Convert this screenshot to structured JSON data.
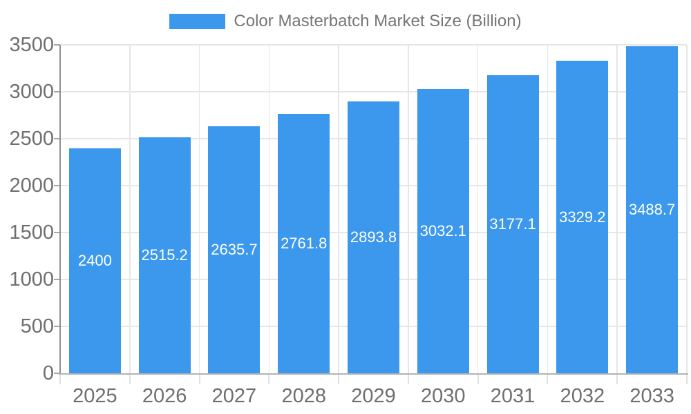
{
  "chart_data": {
    "type": "bar",
    "title": "Color Masterbatch Market Size (Billion)",
    "legend_label": "Color Masterbatch Market Size (Billion)",
    "categories": [
      "2025",
      "2026",
      "2027",
      "2028",
      "2029",
      "2030",
      "2031",
      "2032",
      "2033"
    ],
    "values": [
      2400,
      2515.2,
      2635.7,
      2761.8,
      2893.8,
      3032.1,
      3177.1,
      3329.2,
      3488.7
    ],
    "value_labels": [
      "2400",
      "2515.2",
      "2635.7",
      "2761.8",
      "2893.8",
      "3032.1",
      "3177.1",
      "3329.2",
      "3488.7"
    ],
    "xlabel": "",
    "ylabel": "",
    "ylim": [
      0,
      3500
    ],
    "ytick_step": 500,
    "y_tick_labels": [
      "0",
      "500",
      "1000",
      "1500",
      "2000",
      "2500",
      "3000",
      "3500"
    ],
    "grid": "on",
    "legend_position": "top-center",
    "colors": {
      "bar": "#3b98ec",
      "legend_text": "#757575",
      "tick_text": "#6f6f6f",
      "value_label_text": "#ffffff",
      "y_axis_line": "#8f8f8f",
      "x_axis_line": "#b3b3b3",
      "gridline": "#e6e6e6",
      "x_tick": "#e0e0e0",
      "y_tick": "#a6a6a6",
      "background": "#ffffff"
    }
  }
}
